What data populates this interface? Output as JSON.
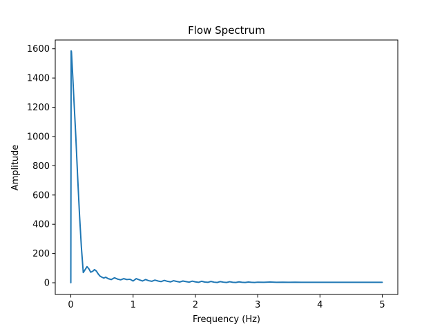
{
  "chart_data": {
    "type": "line",
    "title": "Flow Spectrum",
    "xlabel": "Frequency (Hz)",
    "ylabel": "Amplitude",
    "xlim": [
      -0.25,
      5.25
    ],
    "ylim": [
      -80,
      1660
    ],
    "xticks": [
      0,
      1,
      2,
      3,
      4,
      5
    ],
    "yticks": [
      0,
      200,
      400,
      600,
      800,
      1000,
      1200,
      1400,
      1600
    ],
    "grid": false,
    "legend": "none",
    "series": [
      {
        "color": "#1f77b4",
        "x": [
          0,
          0.005,
          0.01,
          0.03,
          0.05,
          0.08,
          0.11,
          0.14,
          0.17,
          0.2,
          0.23,
          0.26,
          0.29,
          0.32,
          0.35,
          0.38,
          0.41,
          0.44,
          0.47,
          0.5,
          0.53,
          0.56,
          0.6,
          0.65,
          0.7,
          0.75,
          0.8,
          0.85,
          0.9,
          0.95,
          1.0,
          1.05,
          1.1,
          1.15,
          1.2,
          1.25,
          1.3,
          1.35,
          1.4,
          1.45,
          1.5,
          1.55,
          1.6,
          1.65,
          1.7,
          1.75,
          1.8,
          1.85,
          1.9,
          1.95,
          2.0,
          2.05,
          2.1,
          2.15,
          2.2,
          2.25,
          2.3,
          2.35,
          2.4,
          2.45,
          2.5,
          2.55,
          2.6,
          2.65,
          2.7,
          2.75,
          2.8,
          2.85,
          2.9,
          2.95,
          3.0,
          3.1,
          3.2,
          3.3,
          3.4,
          3.5,
          3.6,
          3.7,
          3.8,
          3.9,
          4.0,
          4.2,
          4.4,
          4.6,
          4.8,
          5.0
        ],
        "values": [
          0,
          1585,
          1580,
          1420,
          1250,
          1000,
          720,
          460,
          240,
          70,
          90,
          110,
          95,
          72,
          78,
          90,
          80,
          60,
          45,
          38,
          32,
          38,
          28,
          22,
          34,
          25,
          20,
          28,
          22,
          24,
          12,
          28,
          20,
          12,
          22,
          14,
          10,
          18,
          12,
          8,
          16,
          10,
          6,
          14,
          9,
          5,
          12,
          8,
          4,
          11,
          6,
          3,
          10,
          5,
          3,
          9,
          4,
          2,
          8,
          4,
          2,
          7,
          3,
          2,
          6,
          3,
          2,
          5,
          3,
          2,
          4,
          3,
          5,
          3,
          4,
          3,
          4,
          3,
          3,
          3,
          3,
          3,
          3,
          3,
          3,
          3
        ]
      }
    ]
  }
}
